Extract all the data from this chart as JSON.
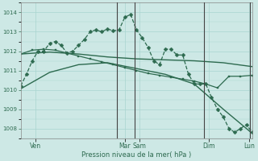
{
  "background_color": "#cde8e5",
  "grid_color": "#a8d5d0",
  "line_color": "#2d6a4f",
  "title": "Pression niveau de la mer( hPa )",
  "ylim": [
    1007.5,
    1014.5
  ],
  "yticks": [
    1008,
    1009,
    1010,
    1011,
    1012,
    1013,
    1014
  ],
  "xlim": [
    0,
    240
  ],
  "xtick_pos": [
    15,
    108,
    123,
    195,
    237
  ],
  "xtick_labels": [
    "Ven",
    "Mar",
    "Sam",
    "Dim",
    "Lun"
  ],
  "vline_positions": [
    100,
    118,
    190,
    238
  ],
  "vline_color": "#444444",
  "series": [
    {
      "x": [
        0,
        30,
        60,
        90,
        120,
        150,
        180,
        210,
        240
      ],
      "y": [
        1010.05,
        1010.9,
        1011.3,
        1011.4,
        1011.1,
        1010.8,
        1010.3,
        1009.0,
        1007.75
      ],
      "style": "solid",
      "marker": null,
      "lw": 1.0
    },
    {
      "x": [
        0,
        30,
        60,
        90,
        120,
        150,
        180,
        210,
        240
      ],
      "y": [
        1011.85,
        1011.95,
        1011.85,
        1011.7,
        1011.6,
        1011.55,
        1011.5,
        1011.4,
        1011.2
      ],
      "style": "solid",
      "marker": null,
      "lw": 1.0
    },
    {
      "x": [
        0,
        12,
        24,
        36,
        48,
        60,
        72,
        84,
        96,
        108,
        120,
        132,
        144,
        156,
        168,
        180,
        192,
        204,
        216,
        228,
        240
      ],
      "y": [
        1011.85,
        1012.05,
        1012.1,
        1012.05,
        1011.9,
        1011.75,
        1011.6,
        1011.45,
        1011.3,
        1011.15,
        1011.0,
        1010.85,
        1010.75,
        1010.65,
        1010.55,
        1010.45,
        1010.3,
        1010.1,
        1010.7,
        1010.7,
        1010.75
      ],
      "style": "solid",
      "marker": "s",
      "markersize": 1.5,
      "lw": 0.9
    },
    {
      "x": [
        0,
        6,
        12,
        18,
        24,
        30,
        36,
        42,
        48,
        54,
        60,
        66,
        72,
        78,
        84,
        90,
        96,
        102,
        108,
        114,
        120,
        126,
        132,
        138,
        144,
        150,
        156,
        162,
        168,
        174,
        180,
        186,
        192,
        198,
        204,
        210,
        216,
        222,
        228,
        234,
        240
      ],
      "y": [
        1010.2,
        1010.8,
        1011.5,
        1012.0,
        1012.0,
        1012.4,
        1012.5,
        1012.3,
        1011.9,
        1012.0,
        1012.3,
        1012.6,
        1013.0,
        1013.1,
        1013.0,
        1013.15,
        1013.05,
        1013.1,
        1013.75,
        1013.9,
        1013.1,
        1012.7,
        1012.2,
        1011.5,
        1011.3,
        1012.1,
        1012.1,
        1011.8,
        1011.8,
        1010.8,
        1010.3,
        1010.3,
        1010.3,
        1009.6,
        1009.0,
        1008.6,
        1008.0,
        1007.8,
        1008.0,
        1008.2,
        1007.8
      ],
      "style": "dashed",
      "marker": "D",
      "markersize": 2.5,
      "lw": 0.9
    }
  ]
}
